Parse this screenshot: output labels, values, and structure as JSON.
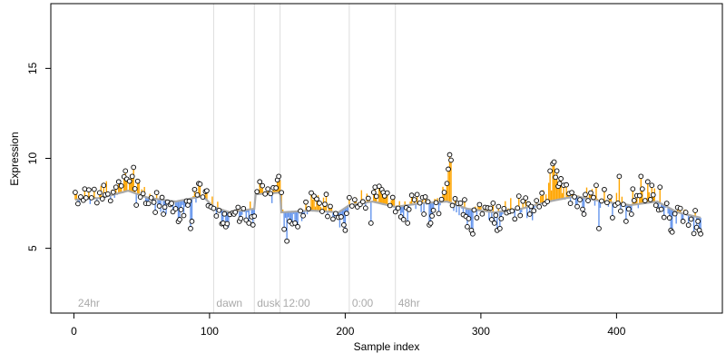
{
  "chart_data": {
    "type": "scatter",
    "title": "",
    "xlabel": "Sample index",
    "ylabel": "Expression",
    "xlim": [
      -17,
      478
    ],
    "ylim": [
      1.4,
      18.6
    ],
    "xticks": [
      0,
      100,
      200,
      300,
      400
    ],
    "yticks": [
      5,
      10,
      15
    ],
    "n_samples": 462,
    "grid": false,
    "colors": {
      "above_baseline": "#FFA500",
      "below_baseline": "#6495ED",
      "baseline": "#A9A9A9",
      "points_edge": "#000000",
      "points_fill": "#FFFFFF",
      "separators": "#DDDDDD",
      "separator_labels": "#AAAAAA"
    },
    "separators": [
      {
        "x": 103,
        "label": "dawn"
      },
      {
        "x": 133,
        "label": "dusk"
      },
      {
        "x": 152,
        "label": "12:00"
      },
      {
        "x": 203,
        "label": "0:00"
      },
      {
        "x": 237,
        "label": "48hr"
      }
    ],
    "first_label": {
      "x": 3,
      "label": "24hr"
    },
    "baseline": [
      [
        1,
        7.7
      ],
      [
        20,
        7.8
      ],
      [
        40,
        8.2
      ],
      [
        55,
        7.8
      ],
      [
        75,
        7.6
      ],
      [
        95,
        7.9
      ],
      [
        103,
        7.3
      ],
      [
        115,
        7.0
      ],
      [
        133,
        7.2
      ],
      [
        134,
        8.0
      ],
      [
        152,
        8.1
      ],
      [
        153,
        7.0
      ],
      [
        175,
        7.1
      ],
      [
        195,
        7.0
      ],
      [
        203,
        7.4
      ],
      [
        220,
        7.6
      ],
      [
        237,
        7.3
      ],
      [
        255,
        7.5
      ],
      [
        275,
        7.6
      ],
      [
        290,
        7.2
      ],
      [
        310,
        7.0
      ],
      [
        330,
        7.2
      ],
      [
        350,
        7.6
      ],
      [
        370,
        7.9
      ],
      [
        390,
        7.6
      ],
      [
        410,
        7.4
      ],
      [
        430,
        7.6
      ],
      [
        445,
        7.0
      ],
      [
        462,
        6.7
      ]
    ],
    "anchors": [
      [
        1,
        7.8
      ],
      [
        8,
        7.6
      ],
      [
        20,
        8.1
      ],
      [
        30,
        8.0
      ],
      [
        42,
        8.9
      ],
      [
        50,
        8.2
      ],
      [
        55,
        7.7
      ],
      [
        70,
        7.3
      ],
      [
        80,
        7.1
      ],
      [
        90,
        8.1
      ],
      [
        97,
        7.8
      ],
      [
        103,
        7.4
      ],
      [
        108,
        6.8
      ],
      [
        115,
        6.6
      ],
      [
        125,
        7.0
      ],
      [
        133,
        7.0
      ],
      [
        135,
        8.3
      ],
      [
        145,
        8.0
      ],
      [
        152,
        8.5
      ],
      [
        155,
        6.4
      ],
      [
        162,
        6.5
      ],
      [
        168,
        6.8
      ],
      [
        175,
        7.6
      ],
      [
        185,
        7.5
      ],
      [
        192,
        6.8
      ],
      [
        200,
        6.7
      ],
      [
        205,
        7.6
      ],
      [
        215,
        7.6
      ],
      [
        225,
        8.0
      ],
      [
        232,
        7.8
      ],
      [
        240,
        7.1
      ],
      [
        248,
        7.4
      ],
      [
        255,
        7.6
      ],
      [
        265,
        7.7
      ],
      [
        270,
        7.4
      ],
      [
        275,
        8.6
      ],
      [
        280,
        7.3
      ],
      [
        285,
        7.0
      ],
      [
        292,
        6.8
      ],
      [
        300,
        7.3
      ],
      [
        310,
        6.9
      ],
      [
        320,
        7.2
      ],
      [
        330,
        7.1
      ],
      [
        340,
        7.2
      ],
      [
        345,
        7.8
      ],
      [
        352,
        8.4
      ],
      [
        355,
        8.7
      ],
      [
        362,
        8.2
      ],
      [
        370,
        7.6
      ],
      [
        380,
        8.0
      ],
      [
        390,
        7.6
      ],
      [
        400,
        7.6
      ],
      [
        410,
        7.0
      ],
      [
        418,
        7.9
      ],
      [
        425,
        8.0
      ],
      [
        432,
        7.4
      ],
      [
        440,
        6.7
      ],
      [
        445,
        7.1
      ],
      [
        455,
        6.6
      ],
      [
        462,
        6.0
      ]
    ],
    "spikes": [
      [
        8,
        8.3
      ],
      [
        22,
        8.5
      ],
      [
        31,
        8.4
      ],
      [
        38,
        9.3
      ],
      [
        43,
        9.0
      ],
      [
        44,
        9.5
      ],
      [
        46,
        7.4
      ],
      [
        53,
        7.5
      ],
      [
        60,
        7.0
      ],
      [
        66,
        6.9
      ],
      [
        72,
        7.5
      ],
      [
        78,
        6.6
      ],
      [
        84,
        7.4
      ],
      [
        86,
        6.1
      ],
      [
        87,
        6.5
      ],
      [
        92,
        8.6
      ],
      [
        98,
        8.2
      ],
      [
        110,
        6.4
      ],
      [
        112,
        6.2
      ],
      [
        118,
        6.9
      ],
      [
        122,
        6.5
      ],
      [
        129,
        6.4
      ],
      [
        132,
        6.3
      ],
      [
        137,
        8.7
      ],
      [
        143,
        8.3
      ],
      [
        150,
        8.8
      ],
      [
        151,
        9.0
      ],
      [
        157,
        5.4
      ],
      [
        159,
        6.5
      ],
      [
        163,
        6.4
      ],
      [
        165,
        6.2
      ],
      [
        177,
        7.9
      ],
      [
        186,
        8.0
      ],
      [
        199,
        6.3
      ],
      [
        200,
        6.0
      ],
      [
        209,
        7.3
      ],
      [
        219,
        6.4
      ],
      [
        222,
        8.4
      ],
      [
        228,
        8.1
      ],
      [
        243,
        6.6
      ],
      [
        246,
        6.4
      ],
      [
        251,
        7.7
      ],
      [
        258,
        6.9
      ],
      [
        262,
        6.3
      ],
      [
        263,
        6.4
      ],
      [
        264,
        6.8
      ],
      [
        276,
        9.4
      ],
      [
        277,
        10.2
      ],
      [
        278,
        9.9
      ],
      [
        283,
        7.5
      ],
      [
        288,
        7.7
      ],
      [
        290,
        6.2
      ],
      [
        293,
        6.0
      ],
      [
        294,
        5.8
      ],
      [
        308,
        6.6
      ],
      [
        310,
        6.4
      ],
      [
        312,
        6.0
      ],
      [
        314,
        6.1
      ],
      [
        328,
        7.9
      ],
      [
        333,
        7.8
      ],
      [
        336,
        6.9
      ],
      [
        349,
        7.6
      ],
      [
        351,
        9.3
      ],
      [
        353,
        9.7
      ],
      [
        354,
        9.8
      ],
      [
        356,
        9.3
      ],
      [
        358,
        8.6
      ],
      [
        361,
        8.5
      ],
      [
        366,
        7.5
      ],
      [
        376,
        6.9
      ],
      [
        385,
        8.5
      ],
      [
        387,
        6.1
      ],
      [
        397,
        6.7
      ],
      [
        402,
        9.0
      ],
      [
        407,
        6.5
      ],
      [
        412,
        8.3
      ],
      [
        418,
        9.0
      ],
      [
        423,
        8.7
      ],
      [
        426,
        8.5
      ],
      [
        432,
        8.4
      ],
      [
        437,
        7.5
      ],
      [
        440,
        6.0
      ],
      [
        441,
        5.9
      ],
      [
        449,
        6.5
      ],
      [
        451,
        7.0
      ],
      [
        458,
        7.1
      ],
      [
        460,
        6.5
      ],
      [
        461,
        6.0
      ],
      [
        462,
        5.8
      ]
    ]
  }
}
